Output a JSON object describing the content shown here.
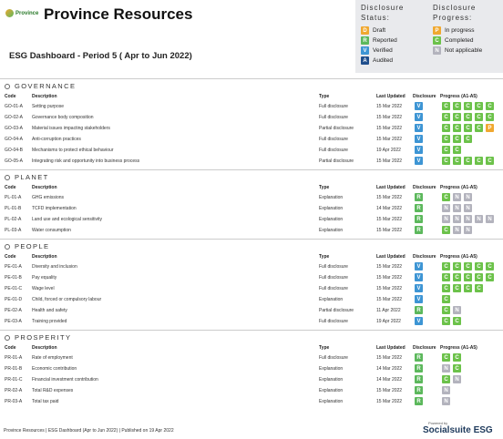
{
  "header": {
    "logo_text": "Province",
    "title": "Province Resources",
    "subtitle": "ESG Dashboard - Period 5 ( Apr to Jun 2022)"
  },
  "legend": {
    "status_title": "Disclosure Status:",
    "status": [
      {
        "letter": "D",
        "label": "Draft",
        "color": "#f0a830"
      },
      {
        "letter": "R",
        "label": "Reported",
        "color": "#5cb85c"
      },
      {
        "letter": "V",
        "label": "Verified",
        "color": "#3d95d4"
      },
      {
        "letter": "A",
        "label": "Audited",
        "color": "#1f4e8c"
      }
    ],
    "progress_title": "Disclosure Progress:",
    "progress": [
      {
        "letter": "P",
        "label": "In progress",
        "color": "#f0a830"
      },
      {
        "letter": "C",
        "label": "Completed",
        "color": "#6cc24a"
      },
      {
        "letter": "N",
        "label": "Not applicable",
        "color": "#b3b3bd"
      }
    ]
  },
  "columns": [
    "Code",
    "Description",
    "Type",
    "Last Updated",
    "Disclosure",
    "Progress (A1-A5)"
  ],
  "sections": [
    {
      "title": "GOVERNANCE",
      "rows": [
        {
          "code": "GO-01-A",
          "description": "Setting purpose",
          "type": "Full disclosure",
          "updated": "15 Mar 2022",
          "disclosure": "V",
          "progress": [
            "C",
            "C",
            "C",
            "C",
            "C"
          ]
        },
        {
          "code": "GO-02-A",
          "description": "Governance body composition",
          "type": "Full disclosure",
          "updated": "15 Mar 2022",
          "disclosure": "V",
          "progress": [
            "C",
            "C",
            "C",
            "C",
            "C"
          ]
        },
        {
          "code": "GO-03-A",
          "description": "Material issues impacting stakeholders",
          "type": "Partial disclosure",
          "updated": "15 Mar 2022",
          "disclosure": "V",
          "progress": [
            "C",
            "C",
            "C",
            "C",
            "P"
          ]
        },
        {
          "code": "GO-04-A",
          "description": "Anti-corruption practices",
          "type": "Full disclosure",
          "updated": "15 Mar 2022",
          "disclosure": "V",
          "progress": [
            "C",
            "C",
            "C"
          ]
        },
        {
          "code": "GO-04-B",
          "description": "Mechanisms to protect ethical behaviour",
          "type": "Full disclosure",
          "updated": "19 Apr 2022",
          "disclosure": "V",
          "progress": [
            "C",
            "C"
          ]
        },
        {
          "code": "GO-05-A",
          "description": "Integrating risk and opportunity into business process",
          "type": "Partial disclosure",
          "updated": "15 Mar 2022",
          "disclosure": "V",
          "progress": [
            "C",
            "C",
            "C",
            "C",
            "C"
          ]
        }
      ]
    },
    {
      "title": "PLANET",
      "rows": [
        {
          "code": "PL-01-A",
          "description": "GHG emissions",
          "type": "Explanation",
          "updated": "15 Mar 2022",
          "disclosure": "R",
          "progress": [
            "C",
            "N",
            "N"
          ]
        },
        {
          "code": "PL-01-B",
          "description": "TCFD implementation",
          "type": "Explanation",
          "updated": "14 Mar 2022",
          "disclosure": "R",
          "progress": [
            "N",
            "N",
            "N"
          ]
        },
        {
          "code": "PL-02-A",
          "description": "Land use and ecological sensitivity",
          "type": "Explanation",
          "updated": "15 Mar 2022",
          "disclosure": "R",
          "progress": [
            "N",
            "N",
            "N",
            "N",
            "N"
          ]
        },
        {
          "code": "PL-03-A",
          "description": "Water consumption",
          "type": "Explanation",
          "updated": "15 Mar 2022",
          "disclosure": "R",
          "progress": [
            "C",
            "N",
            "N"
          ]
        }
      ]
    },
    {
      "title": "PEOPLE",
      "rows": [
        {
          "code": "PE-01-A",
          "description": "Diversity and inclusion",
          "type": "Full disclosure",
          "updated": "15 Mar 2022",
          "disclosure": "V",
          "progress": [
            "C",
            "C",
            "C",
            "C",
            "C"
          ]
        },
        {
          "code": "PE-01-B",
          "description": "Pay equality",
          "type": "Full disclosure",
          "updated": "15 Mar 2022",
          "disclosure": "V",
          "progress": [
            "C",
            "C",
            "C",
            "C",
            "C"
          ]
        },
        {
          "code": "PE-01-C",
          "description": "Wage level",
          "type": "Full disclosure",
          "updated": "15 Mar 2022",
          "disclosure": "V",
          "progress": [
            "C",
            "C",
            "C",
            "C"
          ]
        },
        {
          "code": "PE-01-D",
          "description": "Child, forced or compulsory labour",
          "type": "Explanation",
          "updated": "15 Mar 2022",
          "disclosure": "V",
          "progress": [
            "C"
          ]
        },
        {
          "code": "PE-02-A",
          "description": "Health and safety",
          "type": "Partial disclosure",
          "updated": "11 Apr 2022",
          "disclosure": "R",
          "progress": [
            "C",
            "N"
          ]
        },
        {
          "code": "PE-03-A",
          "description": "Training provided",
          "type": "Full disclosure",
          "updated": "19 Apr 2022",
          "disclosure": "V",
          "progress": [
            "C",
            "C"
          ]
        }
      ]
    },
    {
      "title": "PROSPERITY",
      "rows": [
        {
          "code": "PR-01-A",
          "description": "Rate of employment",
          "type": "Full disclosure",
          "updated": "15 Mar 2022",
          "disclosure": "R",
          "progress": [
            "C",
            "C"
          ]
        },
        {
          "code": "PR-01-B",
          "description": "Economic contribution",
          "type": "Explanation",
          "updated": "14 Mar 2022",
          "disclosure": "R",
          "progress": [
            "N",
            "C"
          ]
        },
        {
          "code": "PR-01-C",
          "description": "Financial investment contribution",
          "type": "Explanation",
          "updated": "14 Mar 2022",
          "disclosure": "R",
          "progress": [
            "C",
            "N"
          ]
        },
        {
          "code": "PR-02-A",
          "description": "Total R&D expenses",
          "type": "Explanation",
          "updated": "15 Mar 2022",
          "disclosure": "R",
          "progress": [
            "N"
          ]
        },
        {
          "code": "PR-03-A",
          "description": "Total tax paid",
          "type": "Explanation",
          "updated": "15 Mar 2022",
          "disclosure": "R",
          "progress": [
            "N"
          ]
        }
      ]
    }
  ],
  "footer": {
    "text": "Province Resources | ESG Dashboard (Apr to Jun 2022) | Published on 19 Apr 2022",
    "powered_by": "Powered by",
    "brand": "Socialsuite ESG"
  }
}
